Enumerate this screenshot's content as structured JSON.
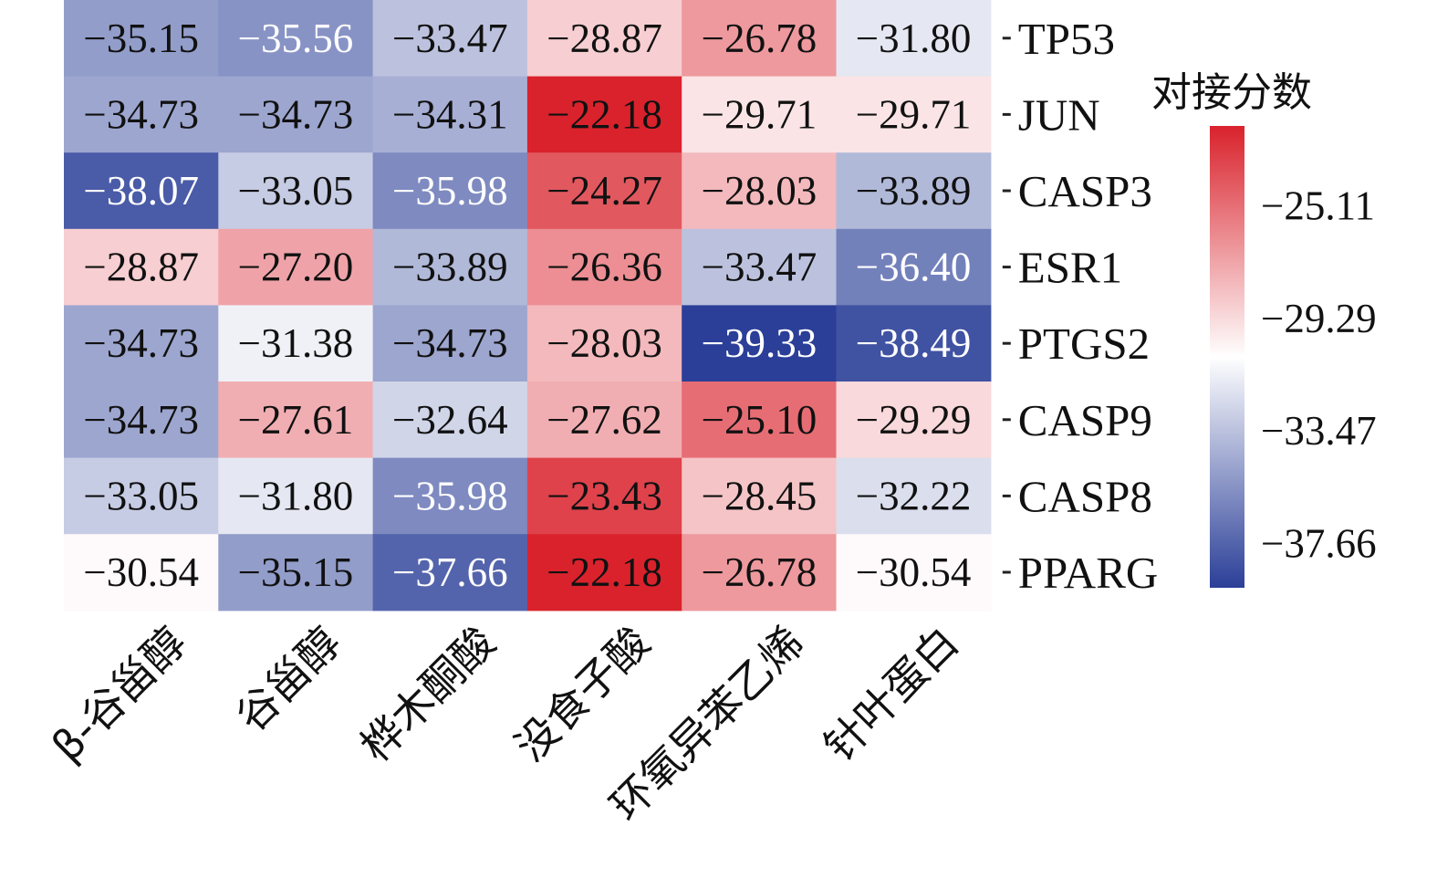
{
  "chart_data": {
    "type": "heatmap",
    "rows": [
      "TP53",
      "JUN",
      "CASP3",
      "ESR1",
      "PTGS2",
      "CASP9",
      "CASP8",
      "PPARG"
    ],
    "columns": [
      "β-谷甾醇",
      "谷甾醇",
      "桦木酮酸",
      "没食子酸",
      "环氧异苯乙烯",
      "针叶蛋白"
    ],
    "values": [
      [
        -35.15,
        -35.56,
        -33.47,
        -28.87,
        -26.78,
        -31.8
      ],
      [
        -34.73,
        -34.73,
        -34.31,
        -22.18,
        -29.71,
        -29.71
      ],
      [
        -38.07,
        -33.05,
        -35.98,
        -24.27,
        -28.03,
        -33.89
      ],
      [
        -28.87,
        -27.2,
        -33.89,
        -26.36,
        -33.47,
        -36.4
      ],
      [
        -34.73,
        -31.38,
        -34.73,
        -28.03,
        -39.33,
        -38.49
      ],
      [
        -34.73,
        -27.61,
        -32.64,
        -27.62,
        -25.1,
        -29.29
      ],
      [
        -33.05,
        -31.8,
        -35.98,
        -23.43,
        -28.45,
        -32.22
      ],
      [
        -30.54,
        -35.15,
        -37.66,
        -22.18,
        -26.78,
        -30.54
      ]
    ],
    "value_labels": [
      [
        "−35.15",
        "−35.56",
        "−33.47",
        "−28.87",
        "−26.78",
        "−31.80"
      ],
      [
        "−34.73",
        "−34.73",
        "−34.31",
        "−22.18",
        "−29.71",
        "−29.71"
      ],
      [
        "−38.07",
        "−33.05",
        "−35.98",
        "−24.27",
        "−28.03",
        "−33.89"
      ],
      [
        "−28.87",
        "−27.20",
        "−33.89",
        "−26.36",
        "−33.47",
        "−36.40"
      ],
      [
        "−34.73",
        "−31.38",
        "−34.73",
        "−28.03",
        "−39.33",
        "−38.49"
      ],
      [
        "−34.73",
        "−27.61",
        "−32.64",
        "−27.62",
        "−25.10",
        "−29.29"
      ],
      [
        "−33.05",
        "−31.80",
        "−35.98",
        "−23.43",
        "−28.45",
        "−32.22"
      ],
      [
        "−30.54",
        "−35.15",
        "−37.66",
        "−22.18",
        "−26.78",
        "−30.54"
      ]
    ],
    "colorbar": {
      "title": "对接分数",
      "ticks": [
        -25.11,
        -29.29,
        -33.47,
        -37.66
      ],
      "tick_labels": [
        "−25.11",
        "−29.29",
        "−33.47",
        "−37.66"
      ],
      "range": [
        -39.33,
        -22.18
      ],
      "colors": {
        "high": "#d9222c",
        "mid": "#ffffff",
        "low": "#2b3f98"
      }
    },
    "legend_placement": "right",
    "grid": false
  }
}
